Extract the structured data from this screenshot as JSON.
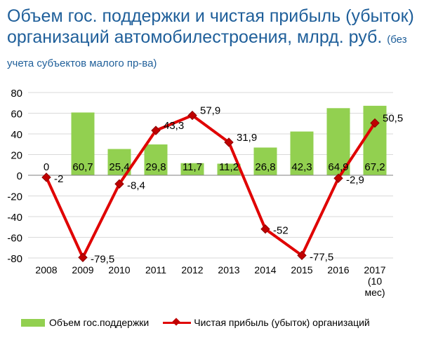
{
  "title": "Объем гос. поддержки и чистая прибыль (убыток) организаций автомобилестроения, млрд. руб.",
  "subtitle": "(без учета субъектов малого пр-ва)",
  "chart_data": {
    "type": "bar",
    "categories": [
      "2008",
      "2009",
      "2010",
      "2011",
      "2012",
      "2013",
      "2014",
      "2015",
      "2016",
      "2017 (10 мес)"
    ],
    "series": [
      {
        "name": "Объем гос.поддержки",
        "type": "bar",
        "color": "#92d050",
        "values": [
          0,
          60.7,
          25.4,
          29.8,
          11.7,
          11.2,
          26.8,
          42.3,
          64.9,
          67.2
        ],
        "labels": [
          "0",
          "60,7",
          "25,4",
          "29,8",
          "11,7",
          "11,2",
          "26,8",
          "42,3",
          "64,9",
          "67,2"
        ]
      },
      {
        "name": "Чистая прибыль (убыток) организаций",
        "type": "line",
        "color": "#e00000",
        "values": [
          -2,
          -79.5,
          -8.4,
          43.3,
          57.9,
          31.9,
          -52,
          -77.5,
          -2.9,
          50.5
        ],
        "labels": [
          "-2",
          "-79,5",
          "-8,4",
          "43,3",
          "57,9",
          "31,9",
          "-52",
          "-77,5",
          "-2,9",
          "50,5"
        ]
      }
    ],
    "y_ticks": [
      "-80",
      "-60",
      "-40",
      "-20",
      "0",
      "20",
      "40",
      "60",
      "80"
    ],
    "ylim": [
      -80,
      80
    ],
    "grid": true,
    "legend": "bottom"
  }
}
